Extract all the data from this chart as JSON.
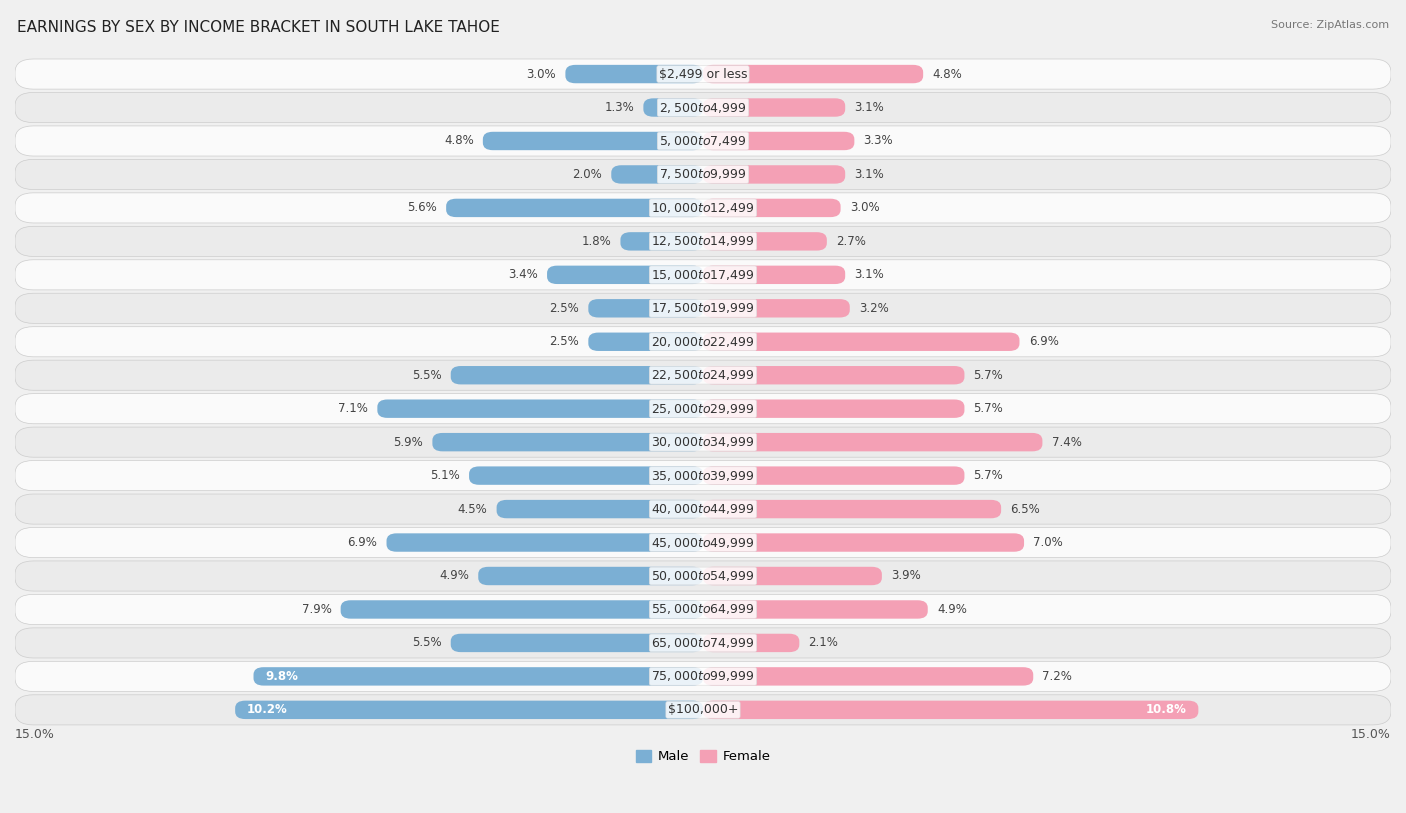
{
  "title": "EARNINGS BY SEX BY INCOME BRACKET IN SOUTH LAKE TAHOE",
  "source": "Source: ZipAtlas.com",
  "categories": [
    "$2,499 or less",
    "$2,500 to $4,999",
    "$5,000 to $7,499",
    "$7,500 to $9,999",
    "$10,000 to $12,499",
    "$12,500 to $14,999",
    "$15,000 to $17,499",
    "$17,500 to $19,999",
    "$20,000 to $22,499",
    "$22,500 to $24,999",
    "$25,000 to $29,999",
    "$30,000 to $34,999",
    "$35,000 to $39,999",
    "$40,000 to $44,999",
    "$45,000 to $49,999",
    "$50,000 to $54,999",
    "$55,000 to $64,999",
    "$65,000 to $74,999",
    "$75,000 to $99,999",
    "$100,000+"
  ],
  "male": [
    3.0,
    1.3,
    4.8,
    2.0,
    5.6,
    1.8,
    3.4,
    2.5,
    2.5,
    5.5,
    7.1,
    5.9,
    5.1,
    4.5,
    6.9,
    4.9,
    7.9,
    5.5,
    9.8,
    10.2
  ],
  "female": [
    4.8,
    3.1,
    3.3,
    3.1,
    3.0,
    2.7,
    3.1,
    3.2,
    6.9,
    5.7,
    5.7,
    7.4,
    5.7,
    6.5,
    7.0,
    3.9,
    4.9,
    2.1,
    7.2,
    10.8
  ],
  "male_color": "#7bafd4",
  "female_color": "#f4a0b5",
  "male_label": "Male",
  "female_label": "Female",
  "xlim": 15.0,
  "bg_light": "#f2f2f2",
  "bg_dark": "#e4e4e4",
  "row_light": "#fafafa",
  "row_dark": "#ebebeb",
  "title_fontsize": 11,
  "label_fontsize": 9,
  "value_fontsize": 8.5,
  "source_fontsize": 8,
  "white_label_threshold": 9.0
}
